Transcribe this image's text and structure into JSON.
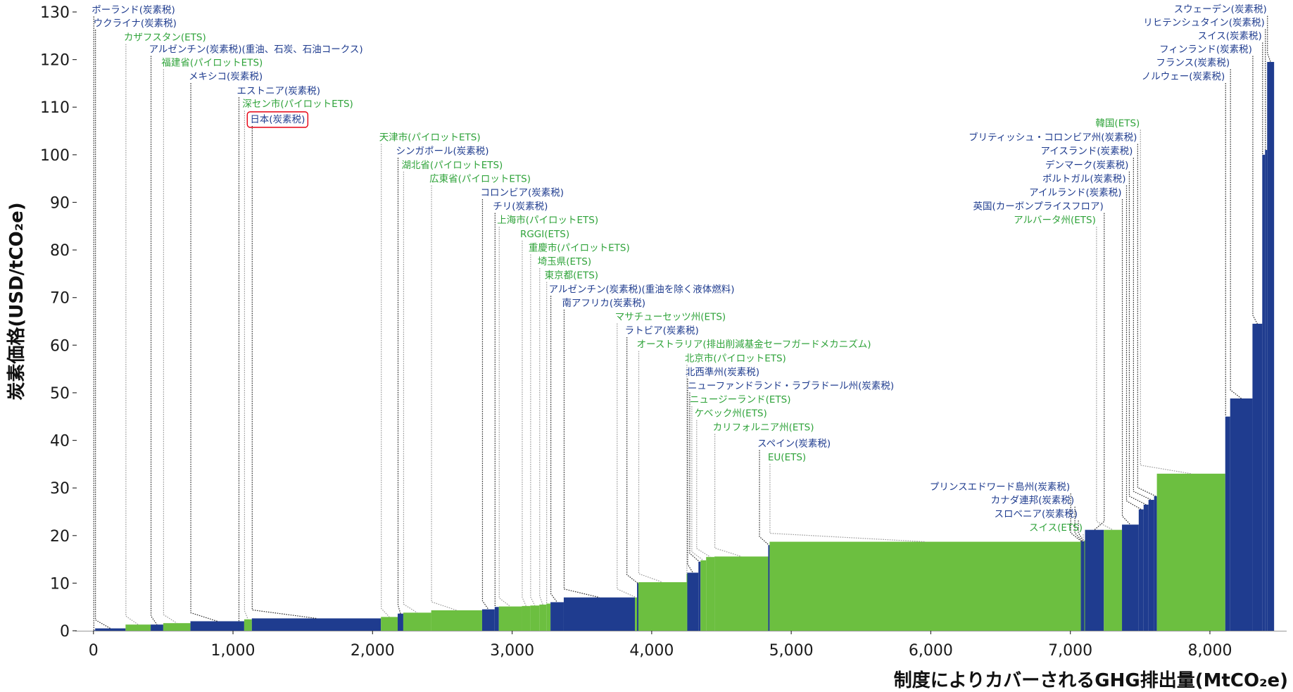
{
  "chart_data": {
    "type": "bar",
    "subtype": "variable-width-step",
    "xlabel": "制度によりカバーされるGHG排出量(MtCO₂e)",
    "ylabel": "炭素価格(USD/tCO₂e)",
    "xlim": [
      -130,
      8550
    ],
    "ylim": [
      0,
      130
    ],
    "x_ticks": [
      0,
      1000,
      2000,
      3000,
      4000,
      5000,
      6000,
      7000,
      8000
    ],
    "x_tick_labels": [
      "0",
      "1,000",
      "2,000",
      "3,000",
      "4,000",
      "5,000",
      "6,000",
      "7,000",
      "8,000"
    ],
    "y_ticks": [
      0,
      10,
      20,
      30,
      40,
      50,
      60,
      70,
      80,
      90,
      100,
      110,
      120,
      130
    ],
    "y_tick_labels": [
      "0",
      "10",
      "20",
      "30",
      "40",
      "50",
      "60",
      "70",
      "80",
      "90",
      "100",
      "110",
      "120",
      "130"
    ],
    "grid": false,
    "legend": "none",
    "colors": {
      "carbon_tax": "#1f3c8f",
      "ets": "#6cbf40",
      "tax_text": "#1f3c8f",
      "ets_text": "#2fa33a",
      "highlight": "#e60012"
    },
    "bars": [
      {
        "label": "ポーランド(炭素税)",
        "type": "tax",
        "x0": 0,
        "x1": 12,
        "price": 0.1,
        "label_x": 0,
        "label_y": 129.8
      },
      {
        "label": "ウクライナ(炭素税)",
        "type": "tax",
        "x0": 12,
        "x1": 230,
        "price": 0.5,
        "label_x": 12,
        "label_y": 127
      },
      {
        "label": "カザフスタン(ETS)",
        "type": "ets",
        "x0": 230,
        "x1": 410,
        "price": 1.3,
        "label_x": 230,
        "label_y": 124
      },
      {
        "label": "アルゼンチン(炭素税)(重油、石炭、石油コークス)",
        "type": "tax",
        "x0": 410,
        "x1": 500,
        "price": 1.3,
        "label_x": 410,
        "label_y": 121.5
      },
      {
        "label": "福建省(パイロットETS)",
        "type": "ets",
        "x0": 500,
        "x1": 695,
        "price": 1.6,
        "label_x": 500,
        "label_y": 118.7
      },
      {
        "label": "メキシコ(炭素税)",
        "type": "tax",
        "x0": 695,
        "x1": 1080,
        "price": 2.0,
        "label_x": 695,
        "label_y": 115.8
      },
      {
        "label": "エストニア(炭素税)",
        "type": "tax",
        "x0": 1040,
        "x1": 1047,
        "price": 2.0,
        "label_x": 1040,
        "label_y": 112.8
      },
      {
        "label": "深セン市(パイロットETS)",
        "type": "ets",
        "x0": 1080,
        "x1": 1135,
        "price": 2.4,
        "label_x": 1080,
        "label_y": 110
      },
      {
        "label": "日本(炭素税)",
        "type": "tax",
        "x0": 1135,
        "x1": 2060,
        "price": 2.6,
        "label_x": 1135,
        "label_y": 106.8,
        "highlight": true
      },
      {
        "label": "天津市(パイロットETS)",
        "type": "ets",
        "x0": 2060,
        "x1": 2180,
        "price": 2.9,
        "label_x": 2060,
        "label_y": 103
      },
      {
        "label": "シンガポール(炭素税)",
        "type": "tax",
        "x0": 2180,
        "x1": 2220,
        "price": 3.6,
        "label_x": 2180,
        "label_y": 100.1
      },
      {
        "label": "湖北省(パイロットETS)",
        "type": "ets",
        "x0": 2220,
        "x1": 2420,
        "price": 3.8,
        "label_x": 2220,
        "label_y": 97.2
      },
      {
        "label": "広東省(パイロットETS)",
        "type": "ets",
        "x0": 2420,
        "x1": 2785,
        "price": 4.3,
        "label_x": 2420,
        "label_y": 94.3
      },
      {
        "label": "コロンビア(炭素税)",
        "type": "tax",
        "x0": 2785,
        "x1": 2875,
        "price": 4.5,
        "label_x": 2785,
        "label_y": 91.4
      },
      {
        "label": "チリ(炭素税)",
        "type": "tax",
        "x0": 2875,
        "x1": 2905,
        "price": 5.0,
        "label_x": 2875,
        "label_y": 88.5
      },
      {
        "label": "上海市(パイロットETS)",
        "type": "ets",
        "x0": 2905,
        "x1": 3070,
        "price": 5.1,
        "label_x": 2905,
        "label_y": 85.6
      },
      {
        "label": "RGGI(ETS)",
        "type": "ets",
        "x0": 3070,
        "x1": 3130,
        "price": 5.2,
        "label_x": 3070,
        "label_y": 82.7
      },
      {
        "label": "重慶市(パイロットETS)",
        "type": "ets",
        "x0": 3130,
        "x1": 3195,
        "price": 5.3,
        "label_x": 3130,
        "label_y": 79.8
      },
      {
        "label": "埼玉県(ETS)",
        "type": "ets",
        "x0": 3195,
        "x1": 3245,
        "price": 5.5,
        "label_x": 3195,
        "label_y": 76.9
      },
      {
        "label": "東京都(ETS)",
        "type": "ets",
        "x0": 3245,
        "x1": 3275,
        "price": 5.7,
        "label_x": 3245,
        "label_y": 74
      },
      {
        "label": "アルゼンチン(炭素税)(重油を除く液体燃料)",
        "type": "tax",
        "x0": 3275,
        "x1": 3370,
        "price": 6.0,
        "label_x": 3275,
        "label_y": 71.1
      },
      {
        "label": "南アフリカ(炭素税)",
        "type": "tax",
        "x0": 3370,
        "x1": 3880,
        "price": 7.0,
        "label_x": 3370,
        "label_y": 68.2
      },
      {
        "label": "マサチューセッツ州(ETS)",
        "type": "ets",
        "x0": 3880,
        "x1": 3895,
        "price": 7.0,
        "label_x": 3750,
        "label_y": 65.3
      },
      {
        "label": "ラトビア(炭素税)",
        "type": "tax",
        "x0": 3895,
        "x1": 3905,
        "price": 10.0,
        "label_x": 3820,
        "label_y": 62.4
      },
      {
        "label": "オーストラリア(排出削減基金セーフガードメカニズム)",
        "type": "ets",
        "x0": 3905,
        "x1": 4250,
        "price": 10.2,
        "label_x": 3905,
        "label_y": 59.5
      },
      {
        "label": "北京市(パイロットETS)",
        "type": "ets",
        "x0": 4250,
        "x1": 4255,
        "price": 12.0,
        "label_x": 4250,
        "label_y": 56.6
      },
      {
        "label": "北西準州(炭素税)",
        "type": "tax",
        "x0": 4255,
        "x1": 4335,
        "price": 12.2,
        "label_x": 4255,
        "label_y": 53.7
      },
      {
        "label": "ニューファンドランド・ラブラドール州(炭素税)",
        "type": "tax",
        "x0": 4335,
        "x1": 4350,
        "price": 14.5,
        "label_x": 4270,
        "label_y": 50.8
      },
      {
        "label": "ニュージーランド(ETS)",
        "type": "ets",
        "x0": 4350,
        "x1": 4390,
        "price": 14.8,
        "label_x": 4285,
        "label_y": 47.9
      },
      {
        "label": "ケベック州(ETS)",
        "type": "ets",
        "x0": 4390,
        "x1": 4450,
        "price": 15.5,
        "label_x": 4320,
        "label_y": 45
      },
      {
        "label": "カリフォルニア州(ETS)",
        "type": "ets",
        "x0": 4450,
        "x1": 4835,
        "price": 15.6,
        "label_x": 4450,
        "label_y": 42.1
      },
      {
        "label": "スペイン(炭素税)",
        "type": "tax",
        "x0": 4835,
        "x1": 4845,
        "price": 18.0,
        "label_x": 4770,
        "label_y": 38.7
      },
      {
        "label": "EU(ETS)",
        "type": "ets",
        "x0": 4845,
        "x1": 7075,
        "price": 18.7,
        "label_x": 4845,
        "label_y": 35.8
      },
      {
        "label": "プリンスエドワード島州(炭素税)",
        "type": "tax",
        "x0": 7075,
        "x1": 7080,
        "price": 18.8,
        "label_x": 7000,
        "label_y": 29.6
      },
      {
        "label": "カナダ連邦(炭素税)",
        "type": "tax",
        "x0": 7080,
        "x1": 7090,
        "price": 18.8,
        "label_x": 7030,
        "label_y": 26.8
      },
      {
        "label": "スロベニア(炭素税)",
        "type": "tax",
        "x0": 7090,
        "x1": 7100,
        "price": 18.8,
        "label_x": 7055,
        "label_y": 23.9
      },
      {
        "label": "スイス(ETS)",
        "type": "ets",
        "x0": 7100,
        "x1": 7105,
        "price": 19.0,
        "label_x": 7090,
        "label_y": 21.0
      },
      {
        "label": "英国(カーボンプライスフロア)",
        "type": "tax",
        "x0": 7105,
        "x1": 7240,
        "price": 21.2,
        "label_x": 7240,
        "label_y": 88.5
      },
      {
        "label": "アルバータ州(ETS)",
        "type": "ets",
        "x0": 7240,
        "x1": 7370,
        "price": 21.2,
        "label_x": 7185,
        "label_y": 85.6
      },
      {
        "label": "アイルランド(炭素税)",
        "type": "tax",
        "x0": 7370,
        "x1": 7490,
        "price": 22.3,
        "label_x": 7370,
        "label_y": 91.4
      },
      {
        "label": "ポルトガル(炭素税)",
        "type": "tax",
        "x0": 7490,
        "x1": 7525,
        "price": 25.5,
        "label_x": 7400,
        "label_y": 94.3
      },
      {
        "label": "デンマーク(炭素税)",
        "type": "tax",
        "x0": 7525,
        "x1": 7560,
        "price": 26.5,
        "label_x": 7420,
        "label_y": 97.2
      },
      {
        "label": "アイスランド(炭素税)",
        "type": "tax",
        "x0": 7560,
        "x1": 7600,
        "price": 27.5,
        "label_x": 7450,
        "label_y": 100.1
      },
      {
        "label": "ブリティッシュ・コロンビア州(炭素税)",
        "type": "tax",
        "x0": 7600,
        "x1": 7620,
        "price": 28.3,
        "label_x": 7480,
        "label_y": 103
      },
      {
        "label": "韓国(ETS)",
        "type": "ets",
        "x0": 7620,
        "x1": 8110,
        "price": 33.0,
        "label_x": 7500,
        "label_y": 106
      },
      {
        "label": "ノルウェー(炭素税)",
        "type": "tax",
        "x0": 8110,
        "x1": 8145,
        "price": 45.0,
        "label_x": 8110,
        "label_y": 115.8
      },
      {
        "label": "フランス(炭素税)",
        "type": "tax",
        "x0": 8145,
        "x1": 8305,
        "price": 48.8,
        "label_x": 8145,
        "label_y": 118.7
      },
      {
        "label": "フィンランド(炭素税)",
        "type": "tax",
        "x0": 8305,
        "x1": 8375,
        "price": 64.5,
        "label_x": 8305,
        "label_y": 121.5
      },
      {
        "label": "スイス(炭素税)",
        "type": "tax",
        "x0": 8375,
        "x1": 8395,
        "price": 100.0,
        "label_x": 8375,
        "label_y": 124.3
      },
      {
        "label": "リヒテンシュタイン(炭素税)",
        "type": "tax",
        "x0": 8395,
        "x1": 8410,
        "price": 101.0,
        "label_x": 8395,
        "label_y": 127.1
      },
      {
        "label": "スウェーデン(炭素税)",
        "type": "tax",
        "x0": 8410,
        "x1": 8460,
        "price": 119.5,
        "label_x": 8410,
        "label_y": 129.9
      }
    ]
  }
}
